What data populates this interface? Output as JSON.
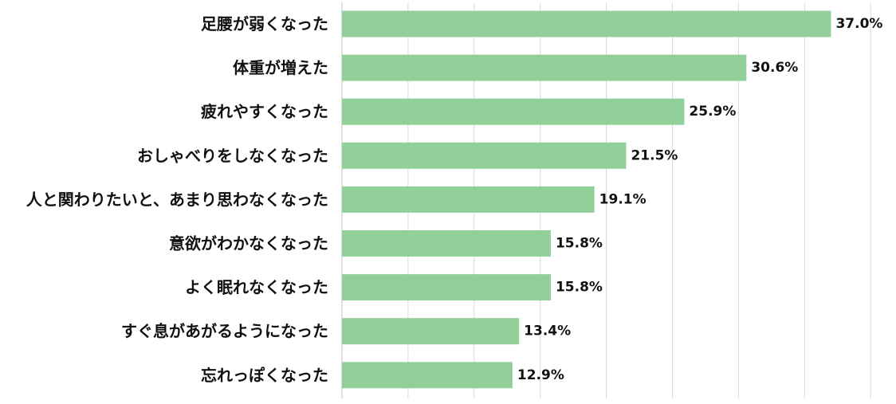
{
  "chart_data": {
    "type": "bar",
    "orientation": "horizontal",
    "title": "",
    "xlabel": "",
    "ylabel": "",
    "xlim": [
      0,
      40
    ],
    "grid": true,
    "value_suffix": "%",
    "bar_color": "#92d09a",
    "categories": [
      "足腰が弱くなった",
      "体重が増えた",
      "疲れやすくなった",
      "おしゃべりをしなくなった",
      "人と関わりたいと、あまり思わなくなった",
      "意欲がわかなくなった",
      "よく眠れなくなった",
      "すぐ息があがるようになった",
      "忘れっぽくなった"
    ],
    "values": [
      37.0,
      30.6,
      25.9,
      21.5,
      19.1,
      15.8,
      15.8,
      13.4,
      12.9
    ],
    "value_labels": [
      "37.0%",
      "30.6%",
      "25.9%",
      "21.5%",
      "19.1%",
      "15.8%",
      "15.8%",
      "13.4%",
      "12.9%"
    ]
  }
}
